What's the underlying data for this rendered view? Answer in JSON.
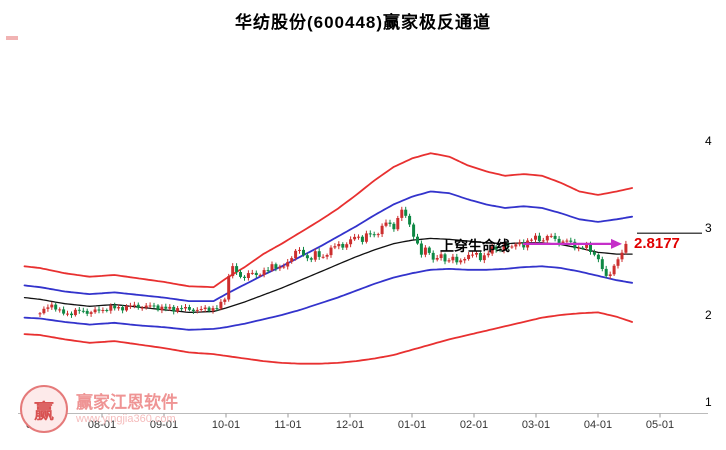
{
  "title": "华纺股份(600448)赢家极反通道",
  "annotation": {
    "label": "上穿生命线",
    "price": "2.8177",
    "value": 2.8177,
    "arrow_color": "#c52fc9"
  },
  "watermark": {
    "brand": "赢家江恩软件",
    "url": "www.yingjia360.com",
    "logo_char": "赢"
  },
  "chart_data": {
    "type": "candlestick",
    "title": "华纺股份(600448)赢家极反通道",
    "x_axis": {
      "labels": [
        "07-01",
        "08-01",
        "09-01",
        "10-01",
        "11-01",
        "12-01",
        "01-01",
        "02-01",
        "03-01",
        "04-01",
        "05-01"
      ]
    },
    "y_axis": {
      "ticks": [
        4,
        3,
        2,
        1
      ],
      "range": [
        1,
        4
      ]
    },
    "colors": {
      "up": "#cc2e2e",
      "down": "#0e8844",
      "band_outer": "#e83030",
      "band_inner": "#3333cc",
      "lifeline": "#111111"
    },
    "series": {
      "name": "华纺股份 600448",
      "last_price": 2.8177,
      "candles_count": 150,
      "x_max": 9.45,
      "close_keypoints": [
        [
          0,
          2.02
        ],
        [
          0.1,
          2.08
        ],
        [
          0.2,
          2.12
        ],
        [
          0.3,
          2.05
        ],
        [
          0.45,
          2.0
        ],
        [
          0.6,
          2.06
        ],
        [
          0.75,
          2.02
        ],
        [
          0.9,
          2.06
        ],
        [
          1.0,
          2.04
        ],
        [
          1.15,
          2.1
        ],
        [
          1.3,
          2.06
        ],
        [
          1.45,
          2.12
        ],
        [
          1.6,
          2.08
        ],
        [
          1.75,
          2.12
        ],
        [
          1.9,
          2.07
        ],
        [
          2.0,
          2.1
        ],
        [
          2.15,
          2.05
        ],
        [
          2.3,
          2.1
        ],
        [
          2.45,
          2.04
        ],
        [
          2.6,
          2.08
        ],
        [
          2.75,
          2.05
        ],
        [
          2.9,
          2.12
        ],
        [
          3.0,
          2.2
        ],
        [
          3.08,
          2.62
        ],
        [
          3.18,
          2.48
        ],
        [
          3.28,
          2.4
        ],
        [
          3.4,
          2.52
        ],
        [
          3.5,
          2.44
        ],
        [
          3.62,
          2.5
        ],
        [
          3.75,
          2.58
        ],
        [
          3.85,
          2.52
        ],
        [
          3.95,
          2.58
        ],
        [
          4.05,
          2.65
        ],
        [
          4.15,
          2.76
        ],
        [
          4.25,
          2.7
        ],
        [
          4.35,
          2.62
        ],
        [
          4.45,
          2.72
        ],
        [
          4.55,
          2.65
        ],
        [
          4.7,
          2.76
        ],
        [
          4.8,
          2.82
        ],
        [
          4.9,
          2.78
        ],
        [
          5.0,
          2.85
        ],
        [
          5.1,
          2.92
        ],
        [
          5.2,
          2.86
        ],
        [
          5.3,
          2.95
        ],
        [
          5.4,
          2.9
        ],
        [
          5.5,
          3.0
        ],
        [
          5.6,
          3.08
        ],
        [
          5.7,
          2.98
        ],
        [
          5.78,
          3.14
        ],
        [
          5.85,
          3.22
        ],
        [
          5.95,
          3.05
        ],
        [
          6.05,
          2.88
        ],
        [
          6.15,
          2.7
        ],
        [
          6.25,
          2.78
        ],
        [
          6.35,
          2.62
        ],
        [
          6.45,
          2.7
        ],
        [
          6.55,
          2.6
        ],
        [
          6.65,
          2.68
        ],
        [
          6.75,
          2.58
        ],
        [
          6.85,
          2.66
        ],
        [
          7.0,
          2.72
        ],
        [
          7.1,
          2.64
        ],
        [
          7.2,
          2.7
        ],
        [
          7.3,
          2.78
        ],
        [
          7.4,
          2.72
        ],
        [
          7.5,
          2.82
        ],
        [
          7.6,
          2.76
        ],
        [
          7.7,
          2.84
        ],
        [
          7.8,
          2.8
        ],
        [
          7.9,
          2.86
        ],
        [
          8.0,
          2.9
        ],
        [
          8.1,
          2.84
        ],
        [
          8.2,
          2.92
        ],
        [
          8.3,
          2.88
        ],
        [
          8.4,
          2.82
        ],
        [
          8.5,
          2.86
        ],
        [
          8.6,
          2.8
        ],
        [
          8.7,
          2.76
        ],
        [
          8.8,
          2.8
        ],
        [
          8.9,
          2.72
        ],
        [
          9.0,
          2.66
        ],
        [
          9.08,
          2.5
        ],
        [
          9.15,
          2.42
        ],
        [
          9.25,
          2.55
        ],
        [
          9.33,
          2.66
        ],
        [
          9.4,
          2.7
        ],
        [
          9.45,
          2.8177
        ]
      ]
    },
    "bands": {
      "upper_red": [
        [
          -0.25,
          2.56
        ],
        [
          0,
          2.54
        ],
        [
          0.4,
          2.48
        ],
        [
          0.8,
          2.44
        ],
        [
          1.2,
          2.46
        ],
        [
          1.6,
          2.42
        ],
        [
          2.0,
          2.38
        ],
        [
          2.4,
          2.33
        ],
        [
          2.8,
          2.32
        ],
        [
          3.0,
          2.42
        ],
        [
          3.3,
          2.55
        ],
        [
          3.6,
          2.7
        ],
        [
          3.9,
          2.82
        ],
        [
          4.2,
          2.95
        ],
        [
          4.5,
          3.08
        ],
        [
          4.8,
          3.22
        ],
        [
          5.1,
          3.38
        ],
        [
          5.4,
          3.55
        ],
        [
          5.7,
          3.7
        ],
        [
          6.0,
          3.8
        ],
        [
          6.3,
          3.86
        ],
        [
          6.6,
          3.82
        ],
        [
          6.9,
          3.72
        ],
        [
          7.2,
          3.65
        ],
        [
          7.5,
          3.6
        ],
        [
          7.8,
          3.62
        ],
        [
          8.1,
          3.6
        ],
        [
          8.4,
          3.52
        ],
        [
          8.7,
          3.42
        ],
        [
          9.0,
          3.38
        ],
        [
          9.3,
          3.42
        ],
        [
          9.55,
          3.46
        ]
      ],
      "upper_blue": [
        [
          -0.25,
          2.34
        ],
        [
          0,
          2.32
        ],
        [
          0.4,
          2.27
        ],
        [
          0.8,
          2.24
        ],
        [
          1.2,
          2.26
        ],
        [
          1.6,
          2.23
        ],
        [
          2.0,
          2.2
        ],
        [
          2.4,
          2.16
        ],
        [
          2.8,
          2.16
        ],
        [
          3.0,
          2.24
        ],
        [
          3.3,
          2.35
        ],
        [
          3.6,
          2.46
        ],
        [
          3.9,
          2.56
        ],
        [
          4.2,
          2.67
        ],
        [
          4.5,
          2.78
        ],
        [
          4.8,
          2.9
        ],
        [
          5.1,
          3.02
        ],
        [
          5.4,
          3.15
        ],
        [
          5.7,
          3.27
        ],
        [
          6.0,
          3.36
        ],
        [
          6.3,
          3.42
        ],
        [
          6.6,
          3.4
        ],
        [
          6.9,
          3.33
        ],
        [
          7.2,
          3.27
        ],
        [
          7.5,
          3.23
        ],
        [
          7.8,
          3.25
        ],
        [
          8.1,
          3.23
        ],
        [
          8.4,
          3.17
        ],
        [
          8.7,
          3.1
        ],
        [
          9.0,
          3.07
        ],
        [
          9.3,
          3.1
        ],
        [
          9.55,
          3.13
        ]
      ],
      "lifeline": [
        [
          -0.25,
          2.2
        ],
        [
          0,
          2.18
        ],
        [
          0.4,
          2.13
        ],
        [
          0.8,
          2.1
        ],
        [
          1.2,
          2.12
        ],
        [
          1.6,
          2.09
        ],
        [
          2.0,
          2.06
        ],
        [
          2.4,
          2.03
        ],
        [
          2.8,
          2.04
        ],
        [
          3.0,
          2.08
        ],
        [
          3.3,
          2.15
        ],
        [
          3.6,
          2.23
        ],
        [
          3.9,
          2.31
        ],
        [
          4.2,
          2.4
        ],
        [
          4.5,
          2.49
        ],
        [
          4.8,
          2.58
        ],
        [
          5.1,
          2.67
        ],
        [
          5.4,
          2.75
        ],
        [
          5.7,
          2.82
        ],
        [
          6.0,
          2.86
        ],
        [
          6.3,
          2.88
        ],
        [
          6.6,
          2.87
        ],
        [
          6.9,
          2.85
        ],
        [
          7.2,
          2.83
        ],
        [
          7.5,
          2.82
        ],
        [
          7.8,
          2.83
        ],
        [
          8.1,
          2.83
        ],
        [
          8.4,
          2.81
        ],
        [
          8.7,
          2.77
        ],
        [
          9.0,
          2.72
        ],
        [
          9.3,
          2.7
        ],
        [
          9.55,
          2.7
        ]
      ],
      "lower_blue": [
        [
          -0.25,
          1.97
        ],
        [
          0,
          1.96
        ],
        [
          0.4,
          1.92
        ],
        [
          0.8,
          1.89
        ],
        [
          1.2,
          1.91
        ],
        [
          1.6,
          1.88
        ],
        [
          2.0,
          1.86
        ],
        [
          2.4,
          1.83
        ],
        [
          2.8,
          1.84
        ],
        [
          3.0,
          1.86
        ],
        [
          3.3,
          1.9
        ],
        [
          3.6,
          1.95
        ],
        [
          3.9,
          2.0
        ],
        [
          4.2,
          2.06
        ],
        [
          4.5,
          2.13
        ],
        [
          4.8,
          2.2
        ],
        [
          5.1,
          2.28
        ],
        [
          5.4,
          2.36
        ],
        [
          5.7,
          2.43
        ],
        [
          6.0,
          2.48
        ],
        [
          6.3,
          2.52
        ],
        [
          6.6,
          2.53
        ],
        [
          6.9,
          2.52
        ],
        [
          7.2,
          2.52
        ],
        [
          7.5,
          2.53
        ],
        [
          7.8,
          2.55
        ],
        [
          8.1,
          2.56
        ],
        [
          8.4,
          2.54
        ],
        [
          8.7,
          2.5
        ],
        [
          9.0,
          2.45
        ],
        [
          9.3,
          2.4
        ],
        [
          9.55,
          2.37
        ]
      ],
      "lower_red": [
        [
          -0.25,
          1.78
        ],
        [
          0,
          1.77
        ],
        [
          0.4,
          1.72
        ],
        [
          0.8,
          1.68
        ],
        [
          1.2,
          1.7
        ],
        [
          1.6,
          1.66
        ],
        [
          2.0,
          1.62
        ],
        [
          2.4,
          1.57
        ],
        [
          2.8,
          1.55
        ],
        [
          3.0,
          1.53
        ],
        [
          3.3,
          1.5
        ],
        [
          3.6,
          1.47
        ],
        [
          3.9,
          1.45
        ],
        [
          4.2,
          1.44
        ],
        [
          4.5,
          1.44
        ],
        [
          4.8,
          1.45
        ],
        [
          5.1,
          1.47
        ],
        [
          5.4,
          1.5
        ],
        [
          5.7,
          1.54
        ],
        [
          6.0,
          1.6
        ],
        [
          6.3,
          1.66
        ],
        [
          6.6,
          1.72
        ],
        [
          6.9,
          1.77
        ],
        [
          7.2,
          1.82
        ],
        [
          7.5,
          1.87
        ],
        [
          7.8,
          1.92
        ],
        [
          8.1,
          1.97
        ],
        [
          8.4,
          2.0
        ],
        [
          8.7,
          2.02
        ],
        [
          9.0,
          2.03
        ],
        [
          9.3,
          1.98
        ],
        [
          9.55,
          1.92
        ]
      ]
    },
    "marker_line": {
      "value": 2.94
    }
  }
}
